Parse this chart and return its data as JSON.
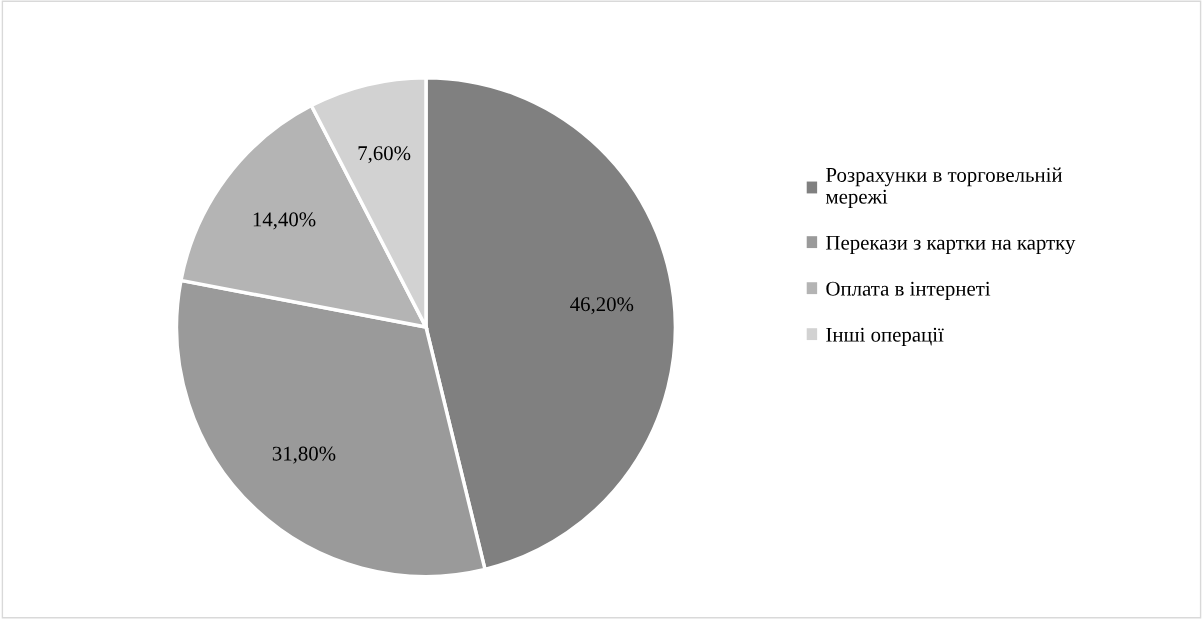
{
  "chart_data": {
    "type": "pie",
    "categories": [
      "Розрахунки в торговельній мережі",
      "Перекази з картки на картку",
      "Оплата в інтернеті",
      "Інші операції"
    ],
    "values": [
      46.2,
      31.8,
      14.4,
      7.6
    ],
    "value_labels": [
      "46,20%",
      "31,80%",
      "14,40%",
      "7,60%"
    ],
    "colors": [
      "#808080",
      "#9a9a9a",
      "#b4b4b4",
      "#d2d2d2"
    ],
    "legend": "right"
  }
}
